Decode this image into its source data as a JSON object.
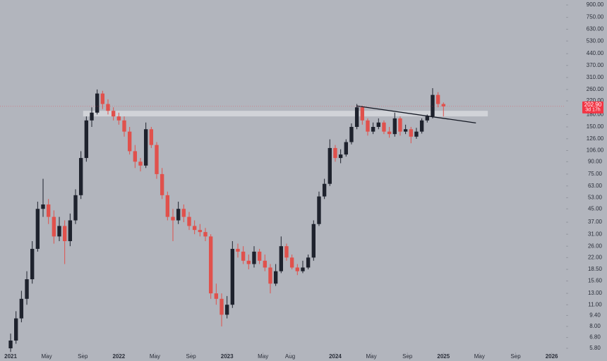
{
  "chart_data": {
    "type": "candlestick",
    "log_scale": true,
    "up_color": "#1e222d",
    "down_color": "#e0514c",
    "x": [
      2021,
      2021.05,
      2021.1,
      2021.15,
      2021.2,
      2021.25,
      2021.3,
      2021.35,
      2021.4,
      2021.45,
      2021.5,
      2021.55,
      2021.6,
      2021.65,
      2021.7,
      2021.75,
      2021.8,
      2021.85,
      2021.9,
      2021.95,
      2022,
      2022.05,
      2022.1,
      2022.15,
      2022.2,
      2022.25,
      2022.3,
      2022.35,
      2022.4,
      2022.45,
      2022.5,
      2022.55,
      2022.6,
      2022.65,
      2022.7,
      2022.75,
      2022.8,
      2022.85,
      2022.9,
      2022.95,
      2023,
      2023.05,
      2023.1,
      2023.15,
      2023.2,
      2023.25,
      2023.3,
      2023.35,
      2023.4,
      2023.45,
      2023.5,
      2023.55,
      2023.6,
      2023.65,
      2023.7,
      2023.75,
      2023.8,
      2023.85,
      2023.9,
      2023.95,
      2024,
      2024.05,
      2024.1,
      2024.15,
      2024.2,
      2024.25,
      2024.3,
      2024.35,
      2024.4,
      2024.45,
      2024.5,
      2024.55,
      2024.6,
      2024.65,
      2024.7,
      2024.75,
      2024.8,
      2024.85,
      2024.9,
      2024.95,
      2025
    ],
    "open": [
      5.8,
      6.5,
      9,
      12,
      16,
      25,
      45,
      48,
      40,
      30,
      35,
      28,
      38,
      55,
      95,
      165,
      185,
      245,
      210,
      190,
      175,
      165,
      140,
      105,
      90,
      85,
      145,
      115,
      75,
      55,
      40,
      38,
      45,
      40,
      35,
      33,
      32,
      30,
      13,
      12,
      9.5,
      11,
      25,
      24,
      21,
      20,
      24,
      21,
      19,
      15,
      18,
      26,
      22,
      19,
      18,
      19,
      22,
      36,
      54,
      65,
      110,
      95,
      100,
      120,
      150,
      200,
      165,
      140,
      150,
      160,
      140,
      135,
      170,
      140,
      145,
      130,
      140,
      165,
      175,
      240,
      210
    ],
    "high": [
      7.2,
      10,
      13.5,
      18,
      28,
      50,
      70,
      52,
      44,
      40,
      38,
      42,
      60,
      105,
      175,
      200,
      260,
      255,
      225,
      200,
      185,
      175,
      150,
      115,
      95,
      160,
      150,
      120,
      82,
      58,
      45,
      50,
      48,
      43,
      38,
      36,
      34,
      31,
      15,
      13,
      12.5,
      28,
      27,
      26,
      23,
      26,
      25,
      23,
      20,
      20,
      30,
      27,
      23,
      20,
      21,
      23,
      38,
      58,
      70,
      125,
      115,
      108,
      125,
      158,
      210,
      205,
      170,
      160,
      170,
      165,
      150,
      185,
      175,
      155,
      150,
      148,
      170,
      180,
      265,
      250,
      215
    ],
    "low": [
      5.5,
      6.2,
      8.5,
      11,
      15,
      24,
      40,
      36,
      27,
      28,
      20,
      26,
      36,
      52,
      90,
      150,
      180,
      195,
      180,
      165,
      155,
      130,
      100,
      82,
      78,
      82,
      110,
      70,
      52,
      38,
      28,
      36,
      37,
      33,
      31,
      30,
      28,
      12,
      11,
      8,
      9,
      10.5,
      22,
      20,
      18.5,
      19,
      20,
      18,
      13,
      14.5,
      17.5,
      21,
      18.5,
      17,
      17.5,
      18.5,
      21,
      35,
      52,
      63,
      90,
      88,
      97,
      116,
      145,
      155,
      132,
      135,
      145,
      135,
      128,
      130,
      132,
      135,
      118,
      126,
      136,
      160,
      170,
      200,
      175
    ],
    "close": [
      6.5,
      9,
      12,
      16,
      25,
      45,
      48,
      40,
      30,
      35,
      28,
      38,
      55,
      95,
      165,
      185,
      245,
      210,
      190,
      175,
      165,
      140,
      105,
      90,
      85,
      145,
      115,
      75,
      55,
      40,
      38,
      45,
      40,
      35,
      33,
      32,
      30,
      13,
      12,
      9.5,
      11,
      25,
      24,
      21,
      20,
      24,
      21,
      19,
      15,
      18,
      26,
      22,
      19,
      18,
      19,
      22,
      36,
      54,
      65,
      110,
      95,
      100,
      120,
      150,
      200,
      165,
      140,
      150,
      160,
      140,
      135,
      170,
      140,
      145,
      130,
      140,
      165,
      175,
      240,
      210,
      202.9
    ],
    "zone": {
      "x": [
        2021.67,
        2025.41
      ],
      "y": [
        175,
        190
      ],
      "color": "#d6d8dd"
    },
    "trendline": {
      "x": [
        2024.2,
        2025.3
      ],
      "y": [
        204,
        159
      ],
      "color": "#131722"
    },
    "last_price": {
      "value": 202.9,
      "label": "202.90",
      "color": "#f23645"
    },
    "countdown": "3d 17h",
    "xlim": [
      2020.902,
      2026.12
    ],
    "xticks": [
      {
        "value": 2021,
        "label": "2021"
      },
      {
        "value": 2021.333,
        "label": "May"
      },
      {
        "value": 2021.667,
        "label": "Sep"
      },
      {
        "value": 2022,
        "label": "2022"
      },
      {
        "value": 2022.333,
        "label": "May"
      },
      {
        "value": 2022.667,
        "label": "Sep"
      },
      {
        "value": 2023,
        "label": "2023"
      },
      {
        "value": 2023.333,
        "label": "May"
      },
      {
        "value": 2023.583,
        "label": "Aug"
      },
      {
        "value": 2024,
        "label": "2024"
      },
      {
        "value": 2024.333,
        "label": "May"
      },
      {
        "value": 2024.667,
        "label": "Sep"
      },
      {
        "value": 2025,
        "label": "2025"
      },
      {
        "value": 2025.333,
        "label": "May"
      },
      {
        "value": 2025.667,
        "label": "Sep"
      },
      {
        "value": 2026,
        "label": "2026"
      }
    ],
    "ylim": [
      5.45,
      968
    ],
    "yticks": [
      {
        "value": 900,
        "label": "900.00"
      },
      {
        "value": 750,
        "label": "750.00"
      },
      {
        "value": 630,
        "label": "630.00"
      },
      {
        "value": 530,
        "label": "530.00"
      },
      {
        "value": 440,
        "label": "440.00"
      },
      {
        "value": 370,
        "label": "370.00"
      },
      {
        "value": 310,
        "label": "310.00"
      },
      {
        "value": 260,
        "label": "260.00"
      },
      {
        "value": 220,
        "label": "220.00"
      },
      {
        "value": 180,
        "label": "180.00"
      },
      {
        "value": 150,
        "label": "150.00"
      },
      {
        "value": 126,
        "label": "126.00"
      },
      {
        "value": 106,
        "label": "106.00"
      },
      {
        "value": 90,
        "label": "90.00"
      },
      {
        "value": 75,
        "label": "75.00"
      },
      {
        "value": 63,
        "label": "63.00"
      },
      {
        "value": 53,
        "label": "53.00"
      },
      {
        "value": 45,
        "label": "45.00"
      },
      {
        "value": 37,
        "label": "37.00"
      },
      {
        "value": 31,
        "label": "31.00"
      },
      {
        "value": 26,
        "label": "26.00"
      },
      {
        "value": 22,
        "label": "22.00"
      },
      {
        "value": 18.5,
        "label": "18.50"
      },
      {
        "value": 15.6,
        "label": "15.60"
      },
      {
        "value": 13,
        "label": "13.00"
      },
      {
        "value": 11,
        "label": "11.00"
      },
      {
        "value": 9.4,
        "label": "9.40"
      },
      {
        "value": 8,
        "label": "8.00"
      },
      {
        "value": 6.8,
        "label": "6.80"
      },
      {
        "value": 5.8,
        "label": "5.80"
      }
    ]
  }
}
